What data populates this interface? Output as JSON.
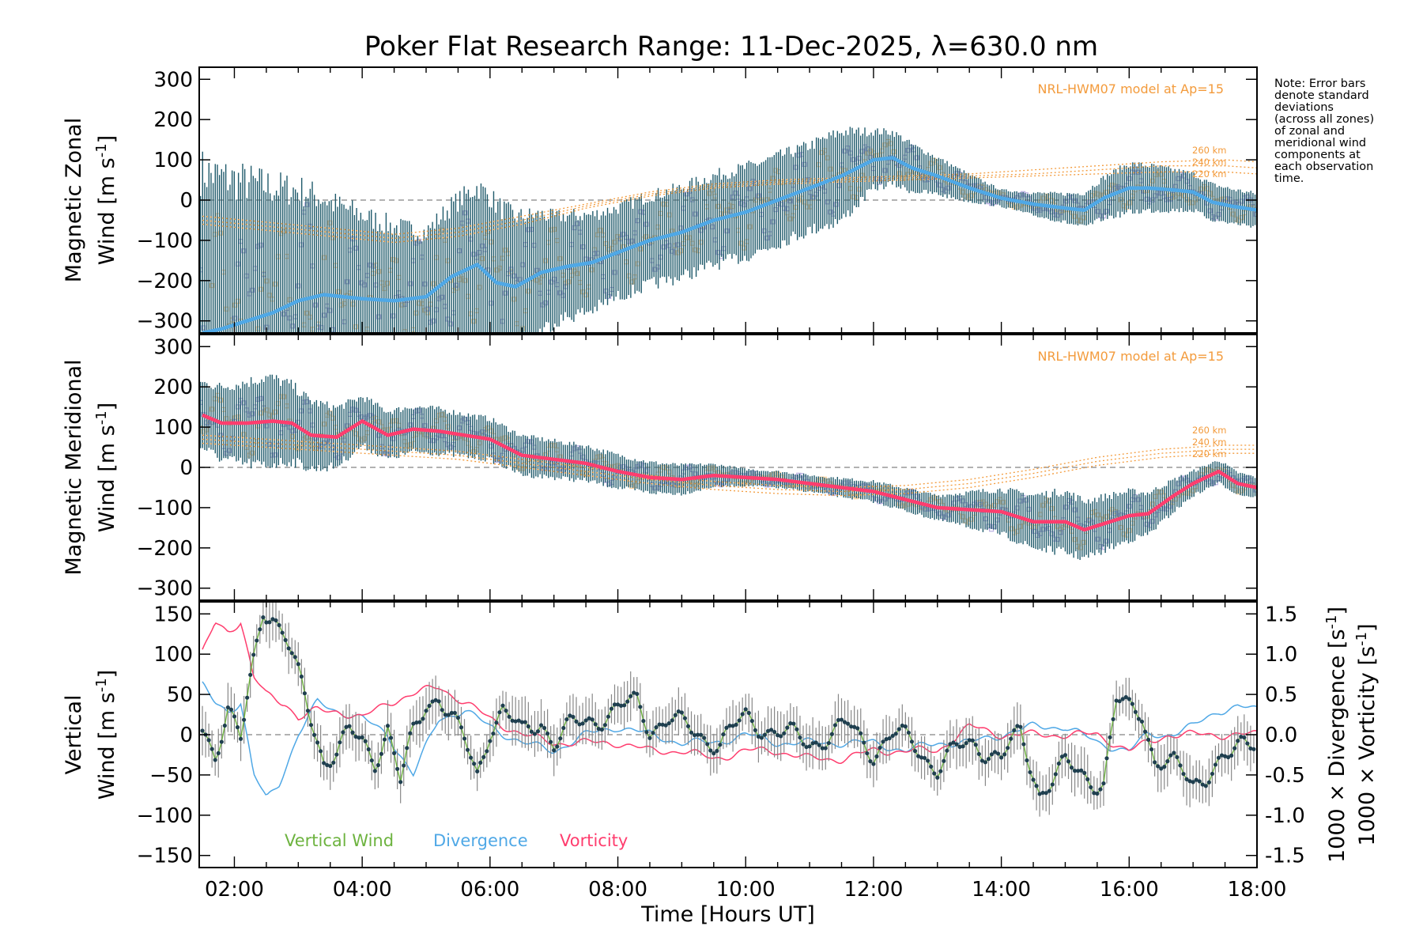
{
  "figure": {
    "title": "Poker Flat Research Range: 11-Dec-2025, λ=630.0 nm",
    "note": [
      "Note: Error bars",
      "denote standard",
      "deviations",
      "(across all zones)",
      "of zonal and",
      "meridional wind",
      "components at",
      "each observation",
      "time."
    ],
    "xlabel": "Time [Hours UT]"
  },
  "colors": {
    "zonal_mean": "#4fa8e6",
    "meridional_mean": "#ff3d6e",
    "vertical": "#6db33f",
    "divergence": "#4fa8e6",
    "vorticity": "#ff3d6e",
    "model": "#f39b3c",
    "errorbar": "#1f5a6b",
    "scatter_purple": "#b9b0e0",
    "scatter_orange": "#fdd3a0",
    "zero_line": "#999999"
  },
  "chart_data": [
    {
      "type": "line",
      "panel": "zonal",
      "ylabel_line1": "Magnetic Zonal",
      "ylabel_line2": "Wind [m s",
      "ylabel_sup": "-1",
      "ylabel_close": "]",
      "model_label": "NRL-HWM07 model at Ap=15",
      "model_altitudes": [
        "260 km",
        "240 km",
        "220 km"
      ],
      "xlim": [
        1.45,
        18.0
      ],
      "ylim": [
        -330,
        330
      ],
      "yticks": [
        300,
        200,
        100,
        0,
        -100,
        -200,
        -300
      ],
      "xticks": [
        "02:00",
        "04:00",
        "06:00",
        "08:00",
        "10:00",
        "12:00",
        "14:00",
        "16:00",
        "18:00"
      ],
      "series": [
        {
          "name": "mean zonal wind",
          "x": [
            1.5,
            1.8,
            2.2,
            2.6,
            3.0,
            3.4,
            4.0,
            4.5,
            5.0,
            5.4,
            5.8,
            6.1,
            6.4,
            6.8,
            7.2,
            7.6,
            8.0,
            8.5,
            9.0,
            9.5,
            10.0,
            10.5,
            11.0,
            11.5,
            12.0,
            12.3,
            12.6,
            13.0,
            13.5,
            14.0,
            14.5,
            15.0,
            15.3,
            15.6,
            16.0,
            16.3,
            16.7,
            17.0,
            17.3,
            17.6,
            18.0
          ],
          "values": [
            -330,
            -320,
            -300,
            -280,
            -250,
            -235,
            -245,
            -250,
            -240,
            -190,
            -160,
            -205,
            -215,
            -180,
            -165,
            -155,
            -130,
            -100,
            -80,
            -50,
            -30,
            0,
            30,
            60,
            100,
            105,
            80,
            60,
            30,
            5,
            -10,
            -20,
            -25,
            5,
            30,
            30,
            25,
            20,
            -5,
            -15,
            -25
          ]
        },
        {
          "name": "NRL-HWM07 260 km",
          "x": [
            1.5,
            2.5,
            3.5,
            4.5,
            5.5,
            6.5,
            7.5,
            8.5,
            9.5,
            10.5,
            11.5,
            12.5,
            13.5,
            14.5,
            15.5,
            16.5,
            17.5,
            18.0
          ],
          "values": [
            -40,
            -55,
            -70,
            -85,
            -70,
            -40,
            -10,
            20,
            40,
            50,
            55,
            60,
            65,
            75,
            85,
            95,
            100,
            95
          ]
        },
        {
          "name": "NRL-HWM07 240 km",
          "x": [
            1.5,
            2.5,
            3.5,
            4.5,
            5.5,
            6.5,
            7.5,
            8.5,
            9.5,
            10.5,
            11.5,
            12.5,
            13.5,
            14.5,
            15.5,
            16.5,
            17.5,
            18.0
          ],
          "values": [
            -50,
            -65,
            -80,
            -95,
            -80,
            -50,
            -15,
            15,
            35,
            45,
            50,
            55,
            60,
            65,
            75,
            85,
            85,
            80
          ]
        },
        {
          "name": "NRL-HWM07 220 km",
          "x": [
            1.5,
            2.5,
            3.5,
            4.5,
            5.5,
            6.5,
            7.5,
            8.5,
            9.5,
            10.5,
            11.5,
            12.5,
            13.5,
            14.5,
            15.5,
            16.5,
            17.5,
            18.0
          ],
          "values": [
            -60,
            -75,
            -90,
            -105,
            -90,
            -60,
            -20,
            10,
            30,
            40,
            45,
            50,
            55,
            60,
            65,
            70,
            70,
            65
          ]
        }
      ],
      "errorbar_halfwidth": [
        {
          "x": [
            1.5,
            2.5,
            3.5,
            5.0,
            6.0,
            7.0,
            8.0,
            9.0,
            10.0,
            11.0,
            11.5,
            12.0,
            12.5,
            13.0,
            14.0,
            15.0,
            16.0,
            17.0,
            18.0
          ],
          "values": [
            400,
            320,
            230,
            160,
            200,
            130,
            110,
            110,
            110,
            105,
            110,
            70,
            60,
            45,
            20,
            35,
            60,
            45,
            40
          ]
        }
      ]
    },
    {
      "type": "line",
      "panel": "meridional",
      "ylabel_line1": "Magnetic Meridional",
      "ylabel_line2": "Wind [m s",
      "ylabel_sup": "-1",
      "ylabel_close": "]",
      "model_label": "NRL-HWM07 model at Ap=15",
      "model_altitudes": [
        "260 km",
        "240 km",
        "220 km"
      ],
      "xlim": [
        1.45,
        18.0
      ],
      "ylim": [
        -330,
        330
      ],
      "yticks": [
        300,
        200,
        100,
        0,
        -100,
        -200,
        -300
      ],
      "series": [
        {
          "name": "mean meridional wind",
          "x": [
            1.5,
            1.8,
            2.2,
            2.6,
            2.9,
            3.2,
            3.6,
            4.0,
            4.4,
            4.8,
            5.2,
            5.6,
            6.0,
            6.5,
            7.0,
            7.5,
            8.0,
            8.5,
            9.0,
            9.5,
            10.0,
            10.5,
            11.0,
            11.5,
            12.0,
            12.5,
            13.0,
            13.5,
            14.0,
            14.5,
            15.0,
            15.3,
            15.6,
            16.0,
            16.3,
            16.7,
            17.0,
            17.4,
            17.7,
            18.0
          ],
          "values": [
            130,
            110,
            110,
            115,
            110,
            80,
            75,
            115,
            80,
            95,
            90,
            80,
            70,
            30,
            20,
            10,
            -10,
            -25,
            -30,
            -20,
            -25,
            -30,
            -40,
            -50,
            -60,
            -80,
            -100,
            -105,
            -110,
            -135,
            -135,
            -155,
            -140,
            -120,
            -115,
            -70,
            -40,
            -10,
            -40,
            -50
          ]
        },
        {
          "name": "NRL-HWM07 260 km",
          "x": [
            1.5,
            2.5,
            3.5,
            4.5,
            5.5,
            6.5,
            7.5,
            8.5,
            9.5,
            10.5,
            11.5,
            12.5,
            13.5,
            14.5,
            15.5,
            16.5,
            17.5,
            18.0
          ],
          "values": [
            80,
            70,
            60,
            50,
            40,
            20,
            0,
            -20,
            -35,
            -45,
            -50,
            -45,
            -30,
            -5,
            25,
            45,
            55,
            55
          ]
        },
        {
          "name": "NRL-HWM07 240 km",
          "x": [
            1.5,
            2.5,
            3.5,
            4.5,
            5.5,
            6.5,
            7.5,
            8.5,
            9.5,
            10.5,
            11.5,
            12.5,
            13.5,
            14.5,
            15.5,
            16.5,
            17.5,
            18.0
          ],
          "values": [
            70,
            60,
            50,
            40,
            30,
            10,
            -10,
            -30,
            -45,
            -55,
            -60,
            -55,
            -40,
            -15,
            15,
            35,
            45,
            45
          ]
        },
        {
          "name": "NRL-HWM07 220 km",
          "x": [
            1.5,
            2.5,
            3.5,
            4.5,
            5.5,
            6.5,
            7.5,
            8.5,
            9.5,
            10.5,
            11.5,
            12.5,
            13.5,
            14.5,
            15.5,
            16.5,
            17.5,
            18.0
          ],
          "values": [
            60,
            50,
            40,
            30,
            20,
            0,
            -20,
            -40,
            -55,
            -65,
            -70,
            -65,
            -50,
            -25,
            5,
            25,
            35,
            35
          ]
        }
      ],
      "errorbar_halfwidth": [
        {
          "x": [
            1.5,
            2.5,
            3.0,
            4.0,
            5.0,
            6.0,
            7.0,
            8.0,
            9.0,
            10.0,
            11.0,
            12.0,
            13.0,
            14.0,
            15.0,
            16.0,
            17.0,
            18.0
          ],
          "values": [
            80,
            110,
            90,
            60,
            55,
            50,
            45,
            40,
            35,
            20,
            20,
            25,
            30,
            55,
            75,
            60,
            30,
            25
          ]
        }
      ]
    },
    {
      "type": "line",
      "panel": "vertical",
      "ylabel_left_line1": "Vertical",
      "ylabel_left_line2": "Wind [m s",
      "ylabel_sup": "-1",
      "ylabel_close": "]",
      "ylabel_right_div": "1000 × Divergence [s",
      "ylabel_right_vor": "1000 × Vorticity [s",
      "xlim": [
        1.45,
        18.0
      ],
      "ylim": [
        -165,
        165
      ],
      "yticks": [
        150,
        100,
        50,
        0,
        -50,
        -100,
        -150
      ],
      "y2lim": [
        -1.65,
        1.65
      ],
      "y2ticks": [
        "1.5",
        "1.0",
        "0.5",
        "0.0",
        "-0.5",
        "-1.0",
        "-1.5"
      ],
      "y2tick_values": [
        1.5,
        1.0,
        0.5,
        0.0,
        -0.5,
        -1.0,
        -1.5
      ],
      "legend": [
        "Vertical Wind",
        "Divergence",
        "Vorticity"
      ],
      "series": [
        {
          "name": "Vertical Wind",
          "x": [
            1.5,
            1.7,
            1.9,
            2.1,
            2.3,
            2.45,
            2.6,
            2.8,
            3.0,
            3.2,
            3.4,
            3.6,
            3.8,
            4.0,
            4.2,
            4.4,
            4.6,
            4.8,
            5.0,
            5.2,
            5.4,
            5.6,
            5.8,
            6.0,
            6.2,
            6.5,
            6.8,
            7.0,
            7.3,
            7.6,
            8.0,
            8.3,
            8.5,
            8.8,
            9.0,
            9.3,
            9.6,
            10.0,
            10.3,
            10.6,
            11.0,
            11.3,
            11.6,
            12.0,
            12.3,
            12.6,
            13.0,
            13.3,
            13.6,
            14.0,
            14.3,
            14.6,
            15.0,
            15.3,
            15.6,
            15.8,
            16.0,
            16.2,
            16.4,
            16.7,
            17.0,
            17.3,
            17.6,
            17.8,
            18.0
          ],
          "values": [
            10,
            -20,
            30,
            -10,
            90,
            160,
            150,
            120,
            70,
            20,
            -30,
            -20,
            0,
            -10,
            -30,
            10,
            -60,
            0,
            40,
            50,
            20,
            -10,
            -50,
            10,
            30,
            0,
            20,
            -10,
            10,
            20,
            30,
            40,
            10,
            20,
            10,
            0,
            -10,
            20,
            10,
            0,
            -10,
            0,
            10,
            -20,
            0,
            -10,
            -40,
            -20,
            -10,
            -30,
            0,
            -70,
            -40,
            -50,
            -60,
            40,
            30,
            30,
            -30,
            -40,
            -60,
            -40,
            -30,
            -10,
            0
          ]
        },
        {
          "name": "Divergence",
          "x": [
            1.5,
            1.7,
            1.9,
            2.1,
            2.3,
            2.5,
            2.7,
            3.0,
            3.3,
            3.6,
            4.0,
            4.4,
            4.8,
            5.2,
            5.6,
            6.0,
            6.5,
            7.0,
            7.5,
            8.0,
            8.5,
            9.0,
            9.5,
            10.0,
            10.5,
            11.0,
            11.5,
            12.0,
            12.5,
            13.0,
            13.5,
            14.0,
            14.5,
            15.0,
            15.5,
            16.0,
            16.3,
            16.6,
            17.0,
            17.4,
            17.7,
            18.0
          ],
          "values": [
            0.6,
            0.4,
            0.3,
            0.4,
            -0.5,
            -0.8,
            -0.6,
            0.0,
            0.4,
            0.3,
            0.2,
            0.0,
            -0.5,
            0.2,
            0.3,
            0.1,
            -0.1,
            -0.2,
            0.0,
            0.1,
            0.0,
            -0.1,
            -0.1,
            0.0,
            -0.1,
            -0.1,
            -0.1,
            -0.1,
            -0.2,
            -0.1,
            -0.1,
            0.0,
            0.1,
            0.1,
            -0.1,
            -0.2,
            0.0,
            0.0,
            0.1,
            0.3,
            0.35,
            0.3
          ]
        },
        {
          "name": "Vorticity",
          "x": [
            1.5,
            1.7,
            1.9,
            2.1,
            2.3,
            2.5,
            2.8,
            3.0,
            3.3,
            3.6,
            4.0,
            4.4,
            4.8,
            5.2,
            5.6,
            6.0,
            6.5,
            7.0,
            7.5,
            8.0,
            8.5,
            9.0,
            9.5,
            10.0,
            10.5,
            11.0,
            11.5,
            12.0,
            12.5,
            13.0,
            13.5,
            14.0,
            14.5,
            15.0,
            15.5,
            16.0,
            16.3,
            16.6,
            17.0,
            17.5,
            18.0
          ],
          "values": [
            1.0,
            1.4,
            1.3,
            1.4,
            0.7,
            0.5,
            0.4,
            0.2,
            0.3,
            0.3,
            0.2,
            0.4,
            0.5,
            0.6,
            0.4,
            0.2,
            0.0,
            -0.1,
            -0.1,
            -0.1,
            -0.2,
            -0.2,
            -0.3,
            -0.2,
            -0.2,
            -0.3,
            -0.3,
            -0.2,
            -0.2,
            -0.2,
            0.1,
            0.0,
            0.0,
            0.0,
            0.0,
            -0.2,
            -0.1,
            0.0,
            0.0,
            0.0,
            0.0
          ]
        }
      ],
      "vertical_error_halfwidth": 25
    }
  ]
}
